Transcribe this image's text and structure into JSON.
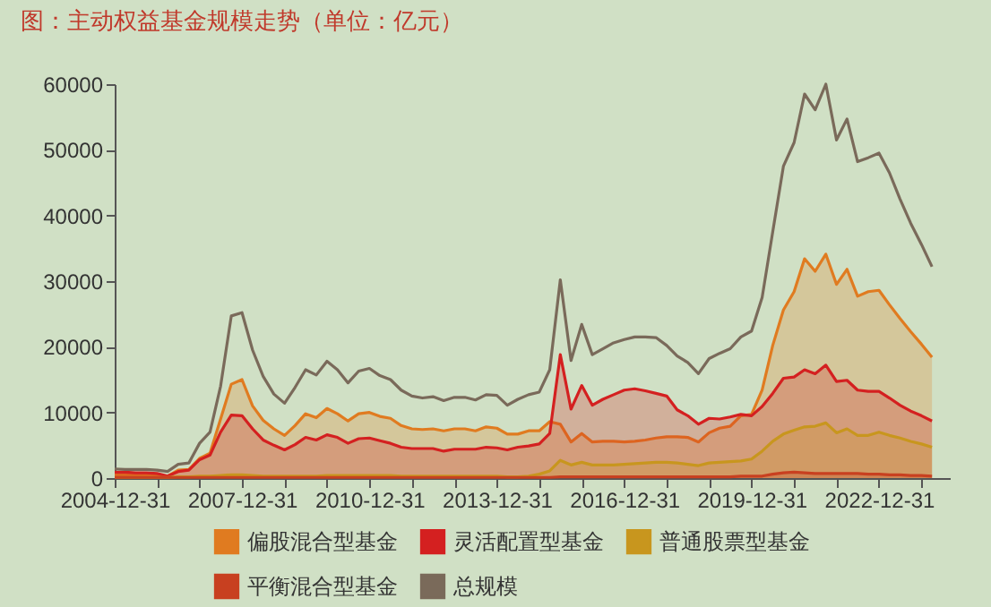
{
  "chart_data": {
    "type": "area",
    "title": "图：主动权益基金规模走势（单位：亿元）",
    "x": [
      "2004-12-31",
      "2005-03-31",
      "2005-06-30",
      "2005-09-30",
      "2005-12-31",
      "2006-03-31",
      "2006-06-30",
      "2006-09-30",
      "2006-12-31",
      "2007-03-31",
      "2007-06-30",
      "2007-09-30",
      "2007-12-31",
      "2008-03-31",
      "2008-06-30",
      "2008-09-30",
      "2008-12-31",
      "2009-03-31",
      "2009-06-30",
      "2009-09-30",
      "2009-12-31",
      "2010-03-31",
      "2010-06-30",
      "2010-09-30",
      "2010-12-31",
      "2011-03-31",
      "2011-06-30",
      "2011-09-30",
      "2011-12-31",
      "2012-03-31",
      "2012-06-30",
      "2012-09-30",
      "2012-12-31",
      "2013-03-31",
      "2013-06-30",
      "2013-09-30",
      "2013-12-31",
      "2014-03-31",
      "2014-06-30",
      "2014-09-30",
      "2014-12-31",
      "2015-03-31",
      "2015-06-30",
      "2015-09-30",
      "2015-12-31",
      "2016-03-31",
      "2016-06-30",
      "2016-09-30",
      "2016-12-31",
      "2017-03-31",
      "2017-06-30",
      "2017-09-30",
      "2017-12-31",
      "2018-03-31",
      "2018-06-30",
      "2018-09-30",
      "2018-12-31",
      "2019-03-31",
      "2019-06-30",
      "2019-09-30",
      "2019-12-31",
      "2020-03-31",
      "2020-06-30",
      "2020-09-30",
      "2020-12-31",
      "2021-03-31",
      "2021-06-30",
      "2021-09-30",
      "2021-12-31",
      "2022-03-31",
      "2022-06-30",
      "2022-09-30",
      "2022-12-31",
      "2023-03-31",
      "2023-06-30",
      "2023-09-30",
      "2023-12-31",
      "2024-03-31"
    ],
    "series": [
      {
        "name": "偏股混合型基金",
        "type": "area",
        "color": "#e07b20",
        "values": [
          500,
          500,
          500,
          500,
          500,
          300,
          1200,
          1300,
          3000,
          3800,
          9000,
          14300,
          15000,
          11000,
          8800,
          7500,
          6500,
          8000,
          9800,
          9200,
          10600,
          9800,
          8700,
          9800,
          10000,
          9400,
          9100,
          8000,
          7500,
          7400,
          7500,
          7200,
          7500,
          7500,
          7200,
          7800,
          7600,
          6700,
          6700,
          7200,
          7200,
          8600,
          8200,
          5500,
          6800,
          5500,
          5600,
          5600,
          5500,
          5600,
          5800,
          6100,
          6300,
          6300,
          6200,
          5500,
          6900,
          7600,
          7900,
          9500,
          9700,
          13400,
          20200,
          25600,
          28400,
          33400,
          31500,
          34100,
          29500,
          31800,
          27700,
          28400,
          28600,
          26400,
          24300,
          22300,
          20400,
          18400
        ]
      },
      {
        "name": "灵活配置型基金",
        "type": "area",
        "color": "#d42020",
        "values": [
          900,
          900,
          800,
          800,
          700,
          300,
          1000,
          1200,
          2800,
          3500,
          7000,
          9600,
          9500,
          7500,
          5800,
          5000,
          4300,
          5100,
          6200,
          5800,
          6600,
          6200,
          5300,
          6000,
          6100,
          5700,
          5300,
          4700,
          4500,
          4500,
          4500,
          4100,
          4400,
          4400,
          4400,
          4700,
          4600,
          4300,
          4700,
          4900,
          5200,
          6800,
          18800,
          10500,
          14100,
          11100,
          12000,
          12700,
          13400,
          13600,
          13300,
          12900,
          12500,
          10400,
          9500,
          8200,
          9100,
          9000,
          9300,
          9700,
          9500,
          10900,
          12900,
          15200,
          15400,
          16500,
          15900,
          17200,
          14700,
          14900,
          13400,
          13200,
          13200,
          12200,
          11100,
          10200,
          9500,
          8700
        ]
      },
      {
        "name": "普通股票型基金",
        "type": "area",
        "color": "#c8961e",
        "values": [
          100,
          100,
          100,
          100,
          100,
          100,
          200,
          200,
          300,
          300,
          400,
          500,
          500,
          400,
          300,
          300,
          300,
          300,
          300,
          300,
          400,
          400,
          400,
          400,
          400,
          400,
          400,
          300,
          300,
          300,
          300,
          300,
          300,
          300,
          300,
          300,
          300,
          200,
          200,
          300,
          600,
          1100,
          2700,
          2000,
          2400,
          2000,
          2000,
          2000,
          2100,
          2200,
          2300,
          2400,
          2400,
          2300,
          2100,
          1900,
          2300,
          2400,
          2500,
          2600,
          2900,
          4100,
          5600,
          6700,
          7300,
          7800,
          7900,
          8400,
          6900,
          7500,
          6500,
          6500,
          7000,
          6500,
          6100,
          5600,
          5200,
          4700
        ]
      },
      {
        "name": "平衡混合型基金",
        "type": "area",
        "color": "#c84020",
        "values": [
          100,
          100,
          100,
          100,
          100,
          100,
          100,
          100,
          100,
          100,
          100,
          100,
          100,
          100,
          100,
          100,
          100,
          100,
          100,
          100,
          100,
          100,
          100,
          100,
          100,
          100,
          100,
          100,
          100,
          100,
          100,
          100,
          100,
          100,
          100,
          100,
          100,
          100,
          100,
          100,
          100,
          100,
          200,
          200,
          200,
          200,
          200,
          200,
          200,
          200,
          200,
          200,
          200,
          200,
          200,
          200,
          200,
          200,
          200,
          300,
          300,
          300,
          600,
          800,
          900,
          800,
          700,
          700,
          700,
          700,
          700,
          600,
          600,
          500,
          500,
          400,
          400,
          300
        ]
      },
      {
        "name": "总规模",
        "type": "line",
        "color": "#7a6a5a",
        "values": [
          1400,
          1300,
          1300,
          1300,
          1200,
          1000,
          2100,
          2300,
          5300,
          7000,
          14000,
          24700,
          25200,
          19500,
          15500,
          12800,
          11400,
          13800,
          16500,
          15700,
          17800,
          16500,
          14500,
          16300,
          16700,
          15600,
          15000,
          13400,
          12500,
          12200,
          12400,
          11800,
          12300,
          12300,
          11900,
          12700,
          12600,
          11100,
          12000,
          12700,
          13100,
          16500,
          30200,
          17900,
          23400,
          18800,
          19700,
          20600,
          21100,
          21500,
          21500,
          21400,
          20200,
          18600,
          17600,
          15900,
          18200,
          19000,
          19700,
          21500,
          22400,
          27500,
          37500,
          47500,
          51100,
          58500,
          56100,
          60000,
          51500,
          54700,
          48200,
          48800,
          49500,
          46500,
          42500,
          38800,
          35600,
          32200
        ]
      }
    ],
    "xlim": [
      "2004-12-31",
      "2024-08-31"
    ],
    "xticks": [
      {
        "value": "2004-12-31",
        "label": "2004-12-31"
      },
      {
        "value": "2005-12-31",
        "label": null
      },
      {
        "value": "2006-12-31",
        "label": null
      },
      {
        "value": "2007-12-31",
        "label": "2007-12-31"
      },
      {
        "value": "2008-12-31",
        "label": null
      },
      {
        "value": "2009-12-31",
        "label": null
      },
      {
        "value": "2010-12-31",
        "label": "2010-12-31"
      },
      {
        "value": "2011-12-31",
        "label": null
      },
      {
        "value": "2012-12-31",
        "label": null
      },
      {
        "value": "2013-12-31",
        "label": "2013-12-31"
      },
      {
        "value": "2014-12-31",
        "label": null
      },
      {
        "value": "2015-12-31",
        "label": null
      },
      {
        "value": "2016-12-31",
        "label": "2016-12-31"
      },
      {
        "value": "2017-12-31",
        "label": null
      },
      {
        "value": "2018-12-31",
        "label": null
      },
      {
        "value": "2019-12-31",
        "label": "2019-12-31"
      },
      {
        "value": "2020-12-31",
        "label": null
      },
      {
        "value": "2021-12-31",
        "label": null
      },
      {
        "value": "2022-12-31",
        "label": "2022-12-31"
      },
      {
        "value": "2023-12-31",
        "label": null
      }
    ],
    "ylim": [
      0,
      60000
    ],
    "yticks": [
      0,
      10000,
      20000,
      30000,
      40000,
      50000,
      60000
    ],
    "grid": false,
    "legend": "bottom"
  }
}
